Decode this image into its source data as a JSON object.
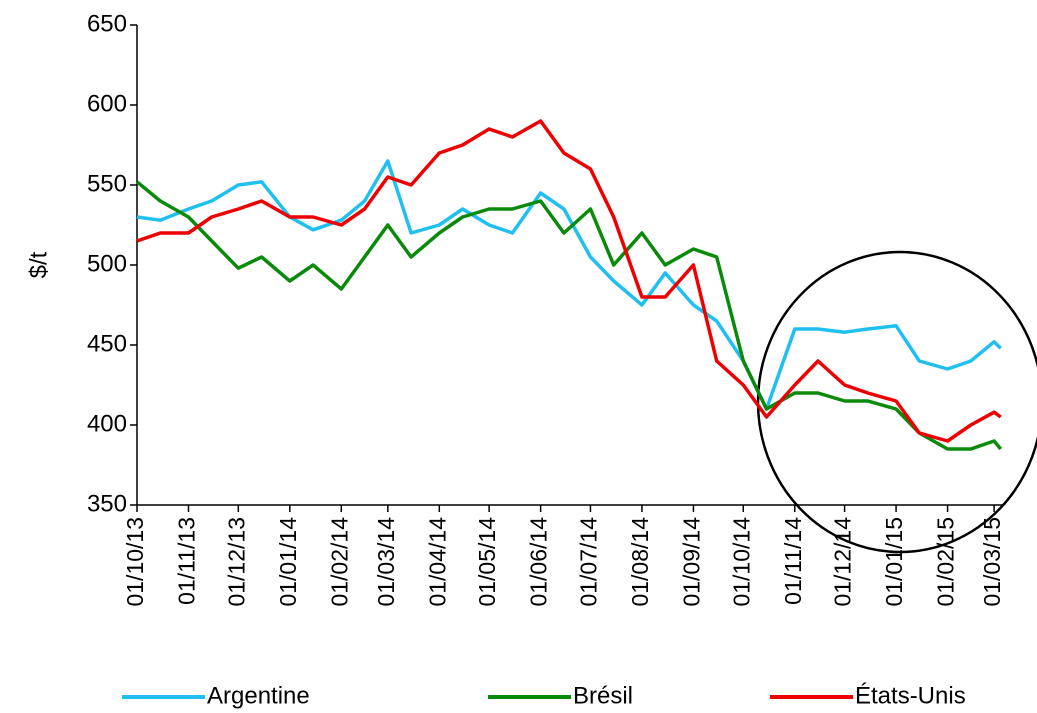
{
  "chart_data": {
    "type": "line",
    "ylabel": "$/t",
    "x": [
      "01/10/13",
      "15/10/13",
      "01/11/13",
      "15/11/13",
      "01/12/13",
      "15/12/13",
      "01/01/14",
      "15/01/14",
      "01/02/14",
      "15/02/14",
      "01/03/14",
      "15/03/14",
      "01/04/14",
      "15/04/14",
      "01/05/14",
      "15/05/14",
      "01/06/14",
      "15/06/14",
      "01/07/14",
      "15/07/14",
      "01/08/14",
      "15/08/14",
      "01/09/14",
      "15/09/14",
      "01/10/14",
      "15/10/14",
      "01/11/14",
      "15/11/14",
      "01/12/14",
      "15/12/14",
      "01/01/15",
      "15/01/15",
      "01/02/15",
      "15/02/15",
      "01/03/15",
      "05/03/15"
    ],
    "series": [
      {
        "name": "Argentine",
        "color": "#1fc0f0",
        "values": [
          530,
          528,
          535,
          540,
          550,
          552,
          530,
          522,
          528,
          540,
          565,
          520,
          525,
          535,
          525,
          520,
          545,
          535,
          505,
          490,
          475,
          495,
          475,
          465,
          440,
          410,
          460,
          460,
          458,
          460,
          462,
          440,
          435,
          440,
          452,
          448
        ]
      },
      {
        "name": "Brésil",
        "color": "#0a8a0a",
        "values": [
          552,
          540,
          530,
          515,
          498,
          505,
          490,
          500,
          485,
          505,
          525,
          505,
          520,
          530,
          535,
          535,
          540,
          520,
          535,
          500,
          520,
          500,
          510,
          505,
          440,
          410,
          420,
          420,
          415,
          415,
          410,
          395,
          385,
          385,
          390,
          385
        ]
      },
      {
        "name": "États-Unis",
        "color": "#ee0000",
        "values": [
          515,
          520,
          520,
          530,
          535,
          540,
          530,
          530,
          525,
          535,
          555,
          550,
          570,
          575,
          585,
          580,
          590,
          570,
          560,
          530,
          480,
          480,
          500,
          440,
          425,
          405,
          425,
          440,
          425,
          420,
          415,
          395,
          390,
          400,
          408,
          405
        ]
      }
    ],
    "xlim": [
      "01/10/13",
      "06/03/15"
    ],
    "xticks": [
      "01/10/13",
      "01/11/13",
      "01/12/13",
      "01/01/14",
      "01/02/14",
      "01/03/14",
      "01/04/14",
      "01/05/14",
      "01/06/14",
      "01/07/14",
      "01/08/14",
      "01/09/14",
      "01/10/14",
      "01/11/14",
      "01/12/14",
      "01/01/15",
      "01/02/15",
      "01/03/15"
    ],
    "ylim": [
      350,
      650
    ],
    "yticks": [
      350,
      400,
      450,
      500,
      550,
      600,
      650
    ],
    "grid": false,
    "legend": "bottom"
  }
}
